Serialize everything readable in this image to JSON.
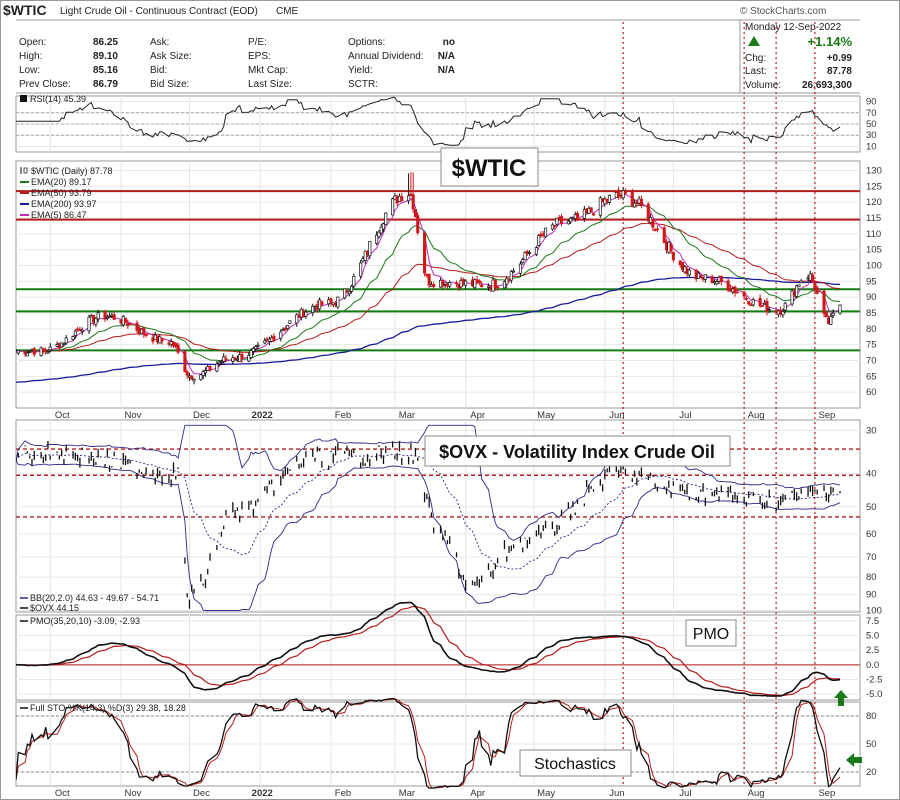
{
  "header": {
    "symbol": "$WTIC",
    "name": "Light Crude Oil - Continuous Contract (EOD)",
    "exchange": "CME",
    "copyright": "© StockCharts.com",
    "date": "Monday  12-Sep-2022",
    "fields": [
      {
        "label": "Open:",
        "value": "86.25"
      },
      {
        "label": "High:",
        "value": "89.10"
      },
      {
        "label": "Low:",
        "value": "85.16"
      },
      {
        "label": "Prev Close:",
        "value": "86.79"
      },
      {
        "label": "Ask:",
        "value": ""
      },
      {
        "label": "Ask Size:",
        "value": ""
      },
      {
        "label": "Bid:",
        "value": ""
      },
      {
        "label": "Bid Size:",
        "value": ""
      },
      {
        "label": "P/E:",
        "value": ""
      },
      {
        "label": "EPS:",
        "value": ""
      },
      {
        "label": "Mkt Cap:",
        "value": ""
      },
      {
        "label": "Last Size:",
        "value": ""
      },
      {
        "label": "Options:",
        "value": "no"
      },
      {
        "label": "Annual Dividend:",
        "value": "N/A"
      },
      {
        "label": "Yield:",
        "value": "N/A"
      },
      {
        "label": "SCTR:",
        "value": ""
      }
    ],
    "change_pct": "+1.14%",
    "chg_label": "Chg:",
    "chg": "+0.99",
    "last_label": "Last:",
    "last": "87.78",
    "volume_label": "Volume:",
    "volume": "26,693,300"
  },
  "colors": {
    "price_up": "#111111",
    "price_down": "#d01818",
    "ema20": "#1a7a1a",
    "ema50": "#b41c1c",
    "ema200": "#1a1a9a",
    "ema5": "#c02cc0",
    "support_line": "#147a14",
    "resistance_line": "#b41c1c",
    "marker": "#b41c1c",
    "arrow": "#1a7a1a",
    "pmo_signal": "#b41c1c"
  },
  "chart_data": [
    {
      "panel": "rsi",
      "type": "line",
      "legend": "RSI(14) 45.39",
      "yticks": [
        "90",
        "70",
        "50",
        "30",
        "10"
      ],
      "ylim": [
        0,
        100
      ],
      "guides": [
        70,
        50,
        30
      ]
    },
    {
      "panel": "price",
      "type": "candlestick",
      "title": "$WTIC",
      "legend": [
        "$WTIC (Daily) 87.78",
        "EMA(20) 89.17",
        "EMA(50) 93.79",
        "EMA(200) 93.97",
        "EMA(5) 86.47"
      ],
      "x_months": [
        "Oct",
        "Nov",
        "Dec",
        "2022",
        "Feb",
        "Mar",
        "Apr",
        "May",
        "Jun",
        "Jul",
        "Aug",
        "Sep"
      ],
      "yticks": [
        "130",
        "125",
        "120",
        "115",
        "110",
        "105",
        "100",
        "95",
        "90",
        "85",
        "80",
        "75",
        "70",
        "65",
        "60"
      ],
      "ylim": [
        55,
        133
      ],
      "horizontal_levels": [
        {
          "value": 123.5,
          "color": "red"
        },
        {
          "value": 114.5,
          "color": "red"
        },
        {
          "value": 92.5,
          "color": "green"
        },
        {
          "value": 85.5,
          "color": "green"
        },
        {
          "value": 73.2,
          "color": "green"
        }
      ],
      "key_points": [
        {
          "date": "2021-09-27",
          "close": 73
        },
        {
          "date": "2021-10-25",
          "close": 84
        },
        {
          "date": "2021-11-22",
          "close": 76
        },
        {
          "date": "2021-12-02",
          "close": 65
        },
        {
          "date": "2021-12-20",
          "close": 71
        },
        {
          "date": "2022-01-31",
          "close": 88
        },
        {
          "date": "2022-03-07",
          "close": 123
        },
        {
          "date": "2022-03-16",
          "close": 95
        },
        {
          "date": "2022-04-11",
          "close": 94
        },
        {
          "date": "2022-05-16",
          "close": 114
        },
        {
          "date": "2022-06-08",
          "close": 122
        },
        {
          "date": "2022-07-14",
          "close": 96
        },
        {
          "date": "2022-08-16",
          "close": 86
        },
        {
          "date": "2022-08-29",
          "close": 97
        },
        {
          "date": "2022-09-07",
          "close": 82
        },
        {
          "date": "2022-09-12",
          "close": 87.78
        }
      ]
    },
    {
      "panel": "ovx",
      "type": "bar",
      "title": "$OVX - Volatility Index Crude Oil",
      "legend": [
        "BB(20,2.0) 44.63 - 49.67 - 54.71",
        "$OVX 44.15"
      ],
      "yticks": [
        "30",
        "40",
        "50",
        "60",
        "70",
        "80",
        "90",
        "100"
      ],
      "ylim": [
        28,
        101
      ],
      "scale": "log-inverted",
      "levels": [
        34,
        40.5,
        53.5
      ],
      "key_points": [
        {
          "date": "2021-10-01",
          "value": 35
        },
        {
          "date": "2021-11-26",
          "value": 40
        },
        {
          "date": "2021-12-01",
          "value": 92
        },
        {
          "date": "2021-12-20",
          "value": 52
        },
        {
          "date": "2022-01-25",
          "value": 36
        },
        {
          "date": "2022-03-08",
          "value": 35
        },
        {
          "date": "2022-03-22",
          "value": 62
        },
        {
          "date": "2022-04-04",
          "value": 85
        },
        {
          "date": "2022-04-25",
          "value": 63
        },
        {
          "date": "2022-06-08",
          "value": 40
        },
        {
          "date": "2022-07-05",
          "value": 45
        },
        {
          "date": "2022-08-15",
          "value": 48
        },
        {
          "date": "2022-09-12",
          "value": 44.15
        }
      ]
    },
    {
      "panel": "pmo",
      "type": "line",
      "title": "PMO",
      "legend": "PMO(35,20,10) -3.09, -2.93",
      "yticks": [
        "7.5",
        "5.0",
        "2.5",
        "0.0",
        "-2.5",
        "-5.0"
      ],
      "ylim": [
        -6,
        8.5
      ]
    },
    {
      "panel": "stochastics",
      "type": "line",
      "title": "Stochastics",
      "legend": "Full STO %K(14,3) %D(3) 29.38, 18.28",
      "yticks": [
        "80",
        "50",
        "20"
      ],
      "ylim": [
        5,
        95
      ]
    }
  ],
  "x_labels": [
    "Oct",
    "Nov",
    "Dec",
    "2022",
    "Feb",
    "Mar",
    "Apr",
    "May",
    "Jun",
    "Jul",
    "Aug",
    "Sep"
  ]
}
